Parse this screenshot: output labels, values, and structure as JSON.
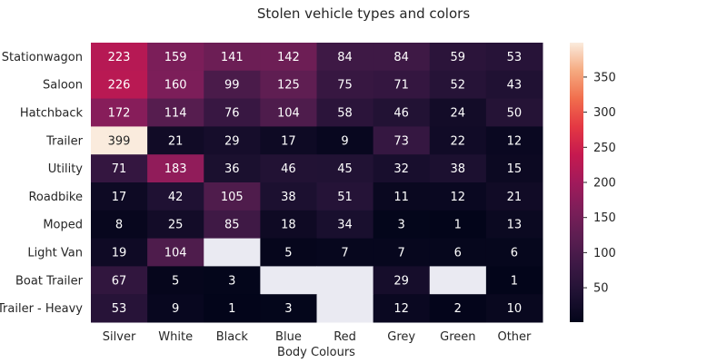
{
  "chart_data": {
    "type": "heatmap",
    "title": "Stolen vehicle types and colors",
    "xlabel": "Body Colours",
    "ylabel": "",
    "x_categories": [
      "Silver",
      "White",
      "Black",
      "Blue",
      "Red",
      "Grey",
      "Green",
      "Other"
    ],
    "y_categories": [
      "Stationwagon",
      "Saloon",
      "Hatchback",
      "Trailer",
      "Utility",
      "Roadbike",
      "Moped",
      "Light Van",
      "Boat Trailer",
      "Trailer - Heavy"
    ],
    "values": [
      [
        223,
        159,
        141,
        142,
        84,
        84,
        59,
        53
      ],
      [
        226,
        160,
        99,
        125,
        75,
        71,
        52,
        43
      ],
      [
        172,
        114,
        76,
        104,
        58,
        46,
        24,
        50
      ],
      [
        399,
        21,
        29,
        17,
        9,
        73,
        22,
        12
      ],
      [
        71,
        183,
        36,
        46,
        45,
        32,
        38,
        15
      ],
      [
        17,
        42,
        105,
        38,
        51,
        11,
        12,
        21
      ],
      [
        8,
        25,
        85,
        18,
        34,
        3,
        1,
        13
      ],
      [
        19,
        104,
        null,
        5,
        7,
        7,
        6,
        6
      ],
      [
        67,
        5,
        3,
        null,
        null,
        29,
        null,
        1
      ],
      [
        53,
        9,
        1,
        3,
        null,
        12,
        2,
        10
      ]
    ],
    "colorscale": "rocket",
    "zlim": [
      1,
      399
    ],
    "colorbar_ticks": [
      50,
      100,
      150,
      200,
      250,
      300,
      350
    ],
    "missing_color": "#eaeaf2"
  }
}
